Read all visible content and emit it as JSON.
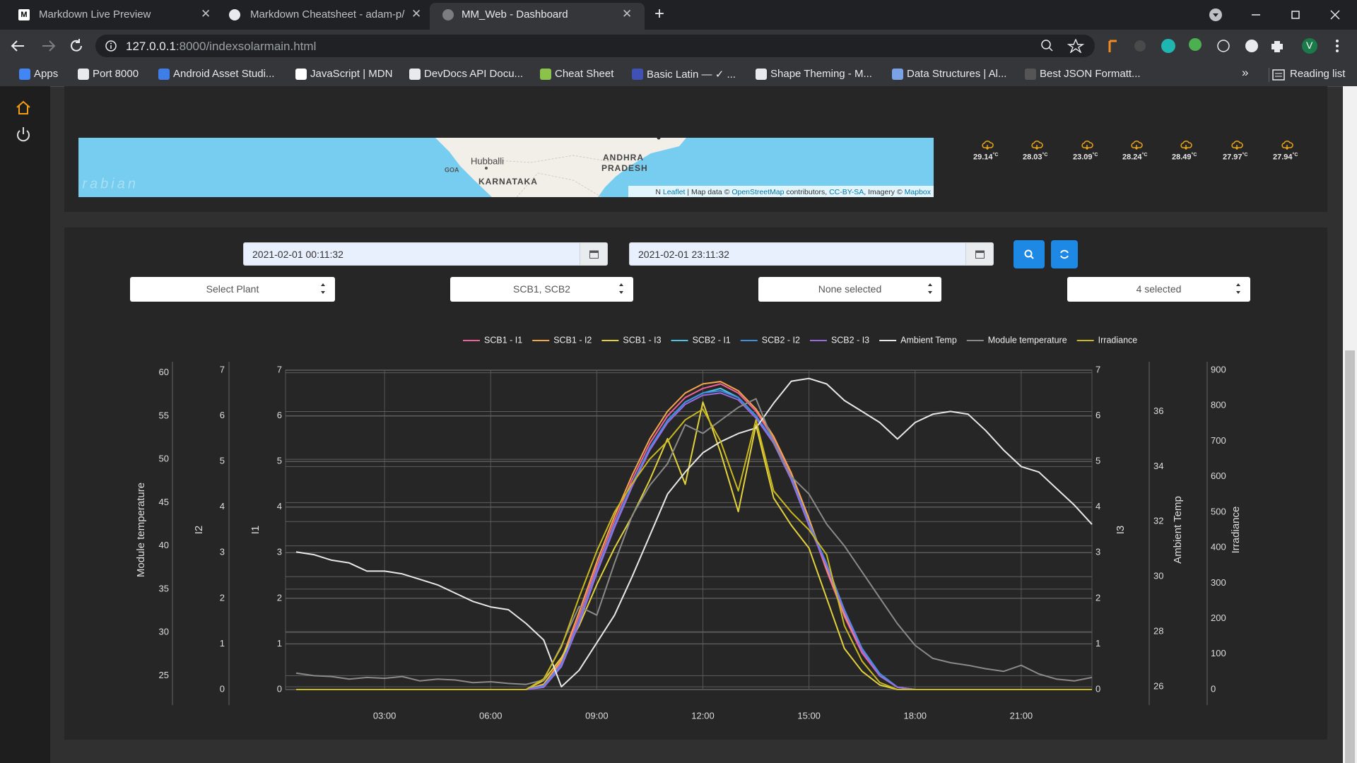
{
  "browser": {
    "tabs": [
      "Markdown Live Preview",
      "Markdown Cheatsheet - adam-p/",
      "MM_Web - Dashboard"
    ],
    "url_host": "127.0.0.1",
    "url_path": ":8000/indexsolarmain.html",
    "bookmarks": [
      "Apps",
      "Port 8000",
      "Android Asset Studi...",
      "JavaScript | MDN",
      "DevDocs API Docu...",
      "Cheat Sheet",
      "Basic Latin — ✓ ...",
      "Shape Theming - M...",
      "Data Structures | Al...",
      "Best JSON Formatt..."
    ],
    "overflow": "»",
    "reading_list": "Reading list",
    "profile": "V"
  },
  "map": {
    "labels": {
      "city": "Hubballi",
      "goa": "GOA",
      "karnataka": "KARNATAKA",
      "andhra": "ANDHRA",
      "pradesh": "PRADESH",
      "sea": "Arabian"
    },
    "attribution": [
      "N ",
      "Leaflet",
      " | Map data © ",
      "OpenStreetMap",
      " contributors, ",
      "CC-BY-SA",
      ", Imagery © ",
      "Mapbox"
    ]
  },
  "weather": {
    "temps": [
      29.14,
      28.03,
      23.09,
      28.24,
      28.49,
      27.97,
      27.94
    ],
    "unit": "°C"
  },
  "filters": {
    "start": "2021-02-01 00:11:32",
    "end": "2021-02-01 23:11:32",
    "plant": "Select Plant",
    "scb": "SCB1, SCB2",
    "inverter": "None selected",
    "params": "4 selected"
  },
  "chart_data": {
    "type": "line",
    "grid": true,
    "legend": "top",
    "x": [
      0.5,
      1,
      1.5,
      2,
      2.5,
      3,
      3.5,
      4,
      4.5,
      5,
      5.5,
      6,
      6.5,
      7,
      7.5,
      8,
      8.5,
      9,
      9.5,
      10,
      10.5,
      11,
      11.5,
      12,
      12.5,
      13,
      13.5,
      14,
      14.5,
      15,
      15.5,
      16,
      16.5,
      17,
      17.5,
      18,
      18.5,
      19,
      19.5,
      20,
      20.5,
      21,
      21.5,
      22,
      22.5,
      23
    ],
    "xlim": [
      0.2,
      23
    ],
    "xticks": [
      {
        "value": 3,
        "label": "03:00"
      },
      {
        "value": 6,
        "label": "06:00"
      },
      {
        "value": 9,
        "label": "09:00"
      },
      {
        "value": 12,
        "label": "12:00"
      },
      {
        "value": 15,
        "label": "15:00"
      },
      {
        "value": 18,
        "label": "18:00"
      },
      {
        "value": 21,
        "label": "21:00"
      }
    ],
    "ylabel": "I1",
    "ylim": [
      0,
      7
    ],
    "yticks": [
      0,
      1,
      2,
      3,
      4,
      5,
      6,
      7
    ],
    "y2label": "I2",
    "y2lim": [
      0,
      7
    ],
    "y2ticks": [
      0,
      1,
      2,
      3,
      4,
      5,
      6,
      7
    ],
    "y3label": "Module temperature",
    "y3lim": [
      23.4,
      60.3
    ],
    "y3ticks": [
      25,
      30,
      35,
      40,
      45,
      50,
      55,
      60
    ],
    "y4label": "I3",
    "y4lim": [
      0,
      7
    ],
    "y4ticks": [
      0,
      1,
      2,
      3,
      4,
      5,
      6,
      7
    ],
    "y5label": "Ambient Temp",
    "y5lim": [
      25.9,
      37.5
    ],
    "y5ticks": [
      26,
      28,
      30,
      32,
      34,
      36
    ],
    "y6label": "Irradiance",
    "y6lim": [
      0,
      900
    ],
    "y6ticks": [
      0,
      100,
      200,
      300,
      400,
      500,
      600,
      700,
      800,
      900
    ],
    "series": [
      {
        "name": "SCB1 - I1",
        "color": "#f0609a",
        "axis": "y",
        "values": [
          0,
          0,
          0,
          0,
          0,
          0,
          0,
          0,
          0,
          0,
          0,
          0,
          0,
          0,
          0.1,
          0.6,
          1.6,
          2.7,
          3.7,
          4.6,
          5.4,
          6.0,
          6.4,
          6.6,
          6.7,
          6.5,
          6.1,
          5.5,
          4.7,
          3.7,
          2.6,
          1.6,
          0.8,
          0.3,
          0.05,
          0,
          0,
          0,
          0,
          0,
          0,
          0,
          0,
          0,
          0,
          0
        ]
      },
      {
        "name": "SCB1 - I2",
        "color": "#f5a54a",
        "axis": "y2",
        "values": [
          0,
          0,
          0,
          0,
          0,
          0,
          0,
          0,
          0,
          0,
          0,
          0,
          0,
          0,
          0.12,
          0.65,
          1.7,
          2.8,
          3.8,
          4.7,
          5.5,
          6.1,
          6.5,
          6.7,
          6.75,
          6.55,
          6.15,
          5.55,
          4.75,
          3.75,
          2.65,
          1.65,
          0.85,
          0.3,
          0.05,
          0,
          0,
          0,
          0,
          0,
          0,
          0,
          0,
          0,
          0,
          0
        ]
      },
      {
        "name": "SCB1 - I3",
        "color": "#e3d23c",
        "axis": "y4",
        "values": [
          0,
          0,
          0,
          0,
          0,
          0,
          0,
          0,
          0,
          0,
          0,
          0,
          0,
          0,
          0.2,
          0.7,
          1.4,
          2.3,
          3.1,
          3.8,
          4.6,
          5.5,
          4.5,
          6.3,
          5.2,
          3.9,
          5.8,
          4.2,
          3.6,
          3.1,
          2.0,
          0.9,
          0.4,
          0.1,
          0,
          0,
          0,
          0,
          0,
          0,
          0,
          0,
          0,
          0,
          0,
          0
        ]
      },
      {
        "name": "SCB2 - I1",
        "color": "#4fc3e8",
        "axis": "y",
        "values": [
          0,
          0,
          0,
          0,
          0,
          0,
          0,
          0,
          0,
          0,
          0,
          0,
          0,
          0,
          0.08,
          0.55,
          1.5,
          2.6,
          3.6,
          4.5,
          5.3,
          5.9,
          6.3,
          6.5,
          6.6,
          6.4,
          6.0,
          5.4,
          4.6,
          3.6,
          2.7,
          1.7,
          0.9,
          0.35,
          0.05,
          0,
          0,
          0,
          0,
          0,
          0,
          0,
          0,
          0,
          0,
          0
        ]
      },
      {
        "name": "SCB2 - I2",
        "color": "#3d8fe0",
        "axis": "y2",
        "values": [
          0,
          0,
          0,
          0,
          0,
          0,
          0,
          0,
          0,
          0,
          0,
          0,
          0,
          0,
          0.08,
          0.55,
          1.5,
          2.6,
          3.6,
          4.5,
          5.3,
          5.9,
          6.3,
          6.5,
          6.55,
          6.4,
          6.0,
          5.45,
          4.65,
          3.65,
          2.75,
          1.75,
          0.9,
          0.35,
          0.05,
          0,
          0,
          0,
          0,
          0,
          0,
          0,
          0,
          0,
          0,
          0
        ]
      },
      {
        "name": "SCB2 - I3",
        "color": "#9a6be0",
        "axis": "y4",
        "values": [
          0,
          0,
          0,
          0,
          0,
          0,
          0,
          0,
          0,
          0,
          0,
          0,
          0,
          0,
          0.05,
          0.5,
          1.45,
          2.55,
          3.55,
          4.45,
          5.25,
          5.85,
          6.25,
          6.45,
          6.5,
          6.35,
          5.95,
          5.4,
          4.6,
          3.6,
          2.7,
          1.7,
          0.85,
          0.3,
          0.05,
          0,
          0,
          0,
          0,
          0,
          0,
          0,
          0,
          0,
          0,
          0
        ]
      },
      {
        "name": "Ambient Temp",
        "color": "#e8e8e8",
        "axis": "y5",
        "values": [
          30.9,
          30.8,
          30.6,
          30.5,
          30.2,
          30.2,
          30.1,
          29.9,
          29.7,
          29.4,
          29.1,
          28.9,
          28.8,
          28.3,
          27.7,
          26.0,
          26.6,
          27.6,
          28.6,
          30.0,
          31.5,
          33.0,
          33.8,
          34.5,
          34.9,
          35.2,
          35.4,
          36.3,
          37.1,
          37.2,
          37.0,
          36.4,
          36.0,
          35.6,
          35.0,
          35.6,
          35.9,
          36.0,
          35.9,
          35.3,
          34.6,
          34.0,
          33.8,
          33.2,
          32.6,
          31.9
        ]
      },
      {
        "name": "Module temperature",
        "color": "#8a8a8a",
        "axis": "y3",
        "values": [
          25.3,
          25.0,
          24.9,
          24.6,
          24.8,
          24.7,
          24.9,
          24.4,
          24.6,
          24.5,
          24.2,
          24.3,
          24.1,
          24.0,
          24.5,
          28.5,
          33.0,
          32.0,
          38.0,
          43.5,
          47.0,
          49.5,
          54.0,
          53.0,
          54.5,
          56.0,
          57.0,
          52.0,
          48.0,
          46.0,
          42.5,
          40.0,
          37.0,
          34.0,
          31.0,
          28.5,
          27.0,
          26.5,
          26.2,
          25.8,
          25.5,
          26.2,
          25.2,
          24.6,
          24.4,
          24.8
        ]
      },
      {
        "name": "Irradiance",
        "color": "#c9b81e",
        "axis": "y6",
        "values": [
          0,
          0,
          0,
          0,
          0,
          0,
          0,
          0,
          0,
          0,
          0,
          0,
          0,
          0,
          30,
          120,
          260,
          390,
          500,
          580,
          650,
          700,
          760,
          790,
          700,
          560,
          760,
          560,
          500,
          450,
          380,
          180,
          80,
          20,
          0,
          0,
          0,
          0,
          0,
          0,
          0,
          0,
          0,
          0,
          0,
          0
        ]
      }
    ]
  }
}
